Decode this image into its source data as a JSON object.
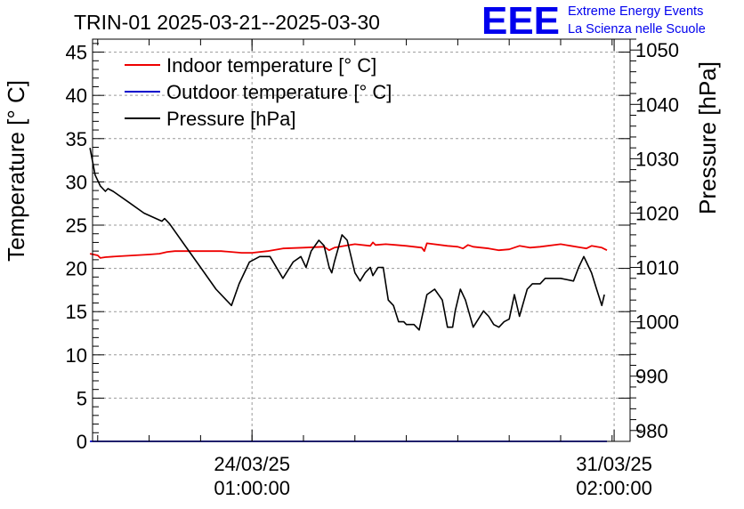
{
  "header": {
    "title": "TRIN-01 2025-03-21--2025-03-30",
    "logo_text": "EEE",
    "brand_line1": "Extreme Energy Events",
    "brand_line2": "La Scienza nelle Scuole"
  },
  "colors": {
    "indoor": "#ee0000",
    "outdoor": "#0000cc",
    "pressure": "#000000",
    "brand": "#0000ee",
    "grid": "#999999"
  },
  "chart_data": {
    "type": "line",
    "title": "TRIN-01 2025-03-21--2025-03-30",
    "ylabel": "Temperature [° C]",
    "y2label": "Pressure [hPa]",
    "ylim": [
      0,
      46.5
    ],
    "y2lim": [
      978,
      1052
    ],
    "xlim": [
      -3.1,
      7.35
    ],
    "x_unit": "days relative to 24/03/25 01:00:00",
    "yticks": [
      0,
      5,
      10,
      15,
      20,
      25,
      30,
      35,
      40,
      45
    ],
    "y2ticks": [
      980,
      990,
      1000,
      1010,
      1020,
      1030,
      1040,
      1050
    ],
    "xticks": [
      {
        "x": 0,
        "date": "24/03/25",
        "time": "01:00:00"
      },
      {
        "x": 7.04,
        "date": "31/03/25",
        "time": "02:00:00"
      }
    ],
    "grid": true,
    "legend_position": "top-left",
    "legend": [
      "Indoor temperature [° C]",
      "Outdoor temperature [° C]",
      "Pressure [hPa]"
    ],
    "series": [
      {
        "name": "Indoor temperature [° C]",
        "axis": "left",
        "x": [
          -3.15,
          -3.0,
          -2.95,
          -2.85,
          -2.6,
          -2.3,
          -2.0,
          -1.8,
          -1.65,
          -1.5,
          -1.2,
          -1.0,
          -0.6,
          -0.2,
          0.0,
          0.3,
          0.6,
          1.0,
          1.4,
          1.5,
          1.6,
          1.8,
          2.0,
          2.3,
          2.35,
          2.4,
          2.6,
          2.8,
          3.0,
          3.3,
          3.35,
          3.4,
          3.8,
          4.0,
          4.1,
          4.2,
          4.3,
          4.6,
          4.8,
          5.0,
          5.2,
          5.4,
          5.6,
          6.0,
          6.2,
          6.4,
          6.5,
          6.6,
          6.8,
          6.9
        ],
        "values": [
          21.7,
          21.5,
          21.2,
          21.3,
          21.4,
          21.5,
          21.6,
          21.7,
          21.9,
          22.0,
          22.0,
          22.0,
          22.0,
          21.8,
          21.8,
          22.0,
          22.3,
          22.4,
          22.5,
          22.1,
          22.4,
          22.6,
          22.8,
          22.6,
          23.0,
          22.7,
          22.8,
          22.7,
          22.6,
          22.4,
          22.0,
          22.9,
          22.6,
          22.5,
          22.3,
          22.7,
          22.5,
          22.3,
          22.1,
          22.2,
          22.6,
          22.4,
          22.5,
          22.8,
          22.6,
          22.4,
          22.3,
          22.6,
          22.4,
          22.1
        ]
      },
      {
        "name": "Outdoor temperature [° C]",
        "axis": "left",
        "x": [
          -3.15,
          6.9
        ],
        "values": [
          0,
          0
        ]
      },
      {
        "name": "Pressure [hPa]",
        "axis": "right",
        "x": [
          -3.15,
          -3.05,
          -2.95,
          -2.85,
          -2.8,
          -2.7,
          -2.4,
          -2.1,
          -1.75,
          -1.7,
          -1.65,
          -1.6,
          -1.3,
          -1.0,
          -0.7,
          -0.4,
          -0.25,
          -0.05,
          0.15,
          0.35,
          0.6,
          0.8,
          0.95,
          1.05,
          1.15,
          1.3,
          1.4,
          1.5,
          1.55,
          1.6,
          1.75,
          1.85,
          2.0,
          2.1,
          2.2,
          2.3,
          2.35,
          2.45,
          2.55,
          2.65,
          2.75,
          2.85,
          2.95,
          3.0,
          3.15,
          3.25,
          3.4,
          3.55,
          3.7,
          3.8,
          3.9,
          3.95,
          4.05,
          4.15,
          4.3,
          4.5,
          4.6,
          4.7,
          4.8,
          4.9,
          5.0,
          5.1,
          5.2,
          5.35,
          5.45,
          5.6,
          5.7,
          5.85,
          6.0,
          6.25,
          6.35,
          6.45,
          6.5,
          6.55,
          6.6,
          6.7,
          6.8,
          6.85
        ],
        "values": [
          1032,
          1027,
          1025,
          1024,
          1024.5,
          1024,
          1022,
          1020,
          1018.5,
          1019,
          1018.5,
          1018,
          1014,
          1010,
          1006,
          1003,
          1007,
          1011,
          1012,
          1012,
          1008,
          1011,
          1012,
          1010,
          1013,
          1015,
          1014,
          1010,
          1009,
          1011,
          1016,
          1015,
          1009,
          1007.5,
          1009,
          1010,
          1008.5,
          1010,
          1010,
          1004,
          1003,
          1000,
          1000,
          999.5,
          999.5,
          998.5,
          1005,
          1006,
          1004,
          999,
          999,
          1002,
          1006,
          1004,
          999,
          1002,
          1001,
          999.5,
          999,
          1000,
          1000.5,
          1005,
          1001,
          1006,
          1007,
          1007,
          1008,
          1008,
          1008,
          1007.5,
          1010,
          1012,
          1011,
          1010,
          1009,
          1006,
          1003,
          1005
        ]
      }
    ]
  }
}
